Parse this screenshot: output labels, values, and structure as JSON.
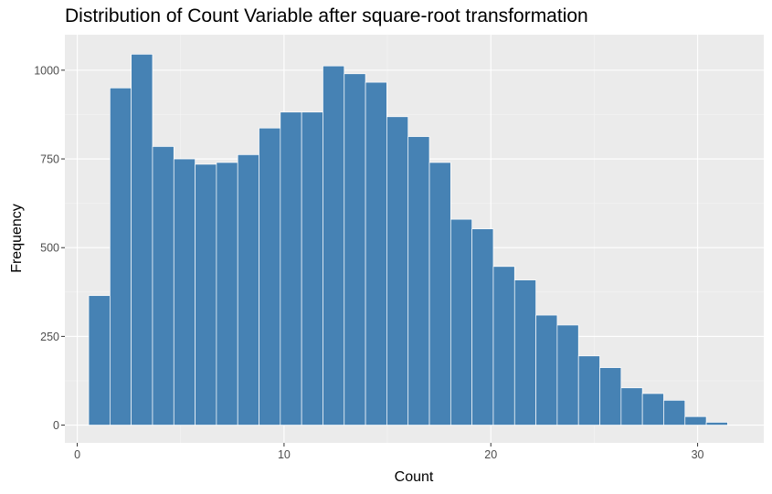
{
  "chart_data": {
    "type": "histogram",
    "title": "Distribution of Count Variable after square-root transformation",
    "xlabel": "Count",
    "ylabel": "Frequency",
    "x_ticks": [
      0,
      10,
      20,
      30
    ],
    "y_ticks": [
      0,
      250,
      500,
      750,
      1000
    ],
    "xlim": [
      -0.6,
      33.2
    ],
    "ylim": [
      -50,
      1100
    ],
    "bin_width": 1.03,
    "bin_start": 0.55,
    "values": [
      365,
      950,
      1045,
      785,
      750,
      735,
      740,
      762,
      837,
      882,
      882,
      1012,
      990,
      966,
      869,
      813,
      740,
      580,
      553,
      447,
      409,
      310,
      282,
      195,
      162,
      105,
      89,
      70,
      24,
      8
    ],
    "colors": {
      "bar_fill": "#4682b4",
      "bar_stroke": "#ffffff",
      "panel_bg": "#ebebeb",
      "grid_major": "#ffffff",
      "grid_minor": "#f5f5f5"
    },
    "grid": true
  }
}
